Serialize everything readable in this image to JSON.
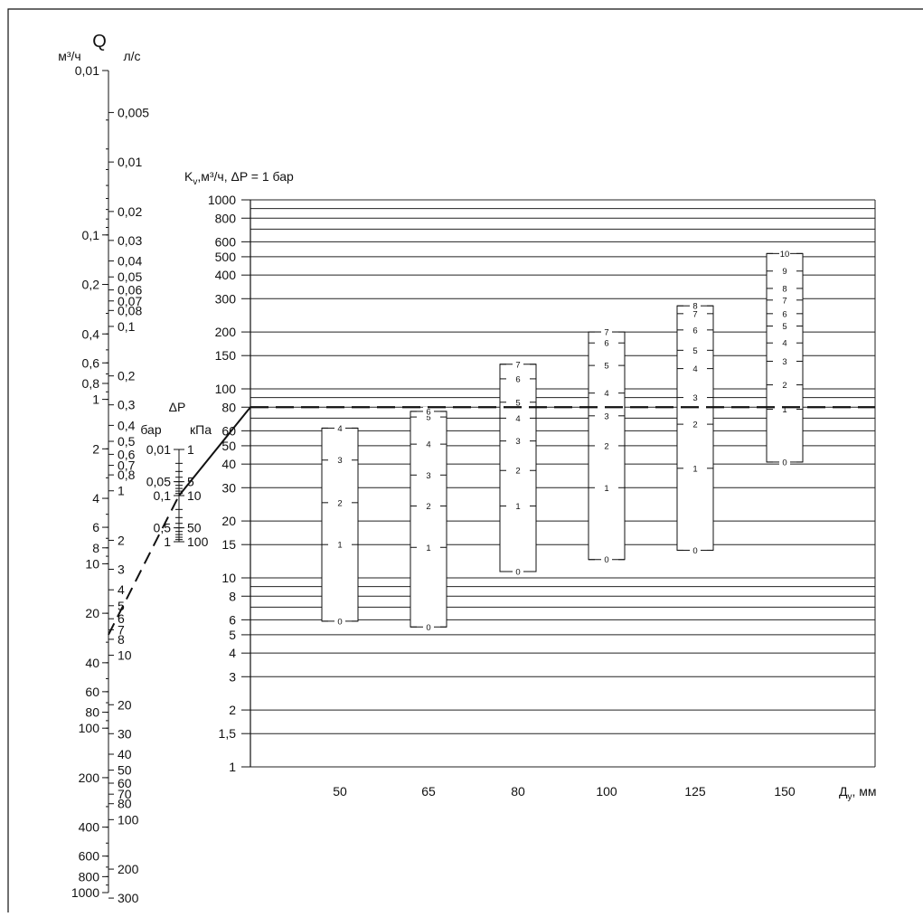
{
  "chart_data": {
    "type": "nomogram",
    "q_scale": {
      "title": "Q",
      "left_unit": "м³/ч",
      "right_unit": "л/с",
      "left_labels": [
        "0,01",
        "0,1",
        "0,2",
        "0,4",
        "0,6",
        "0,8",
        "1",
        "2",
        "4",
        "6",
        "8",
        "10",
        "20",
        "40",
        "60",
        "80",
        "100",
        "200",
        "400",
        "600",
        "800",
        "1000"
      ],
      "left_values": [
        0.01,
        0.1,
        0.2,
        0.4,
        0.6,
        0.8,
        1,
        2,
        4,
        6,
        8,
        10,
        20,
        40,
        60,
        80,
        100,
        200,
        400,
        600,
        800,
        1000
      ],
      "right_labels": [
        "0,005",
        "0,01",
        "0,02",
        "0,03",
        "0,04",
        "0,05",
        "0,06",
        "0,07",
        "0,08",
        "0,1",
        "0,2",
        "0,3",
        "0,4",
        "0,5",
        "0,6",
        "0,7",
        "0,8",
        "1",
        "2",
        "3",
        "4",
        "5",
        "6",
        "7",
        "8",
        "10",
        "20",
        "30",
        "40",
        "50",
        "60",
        "70",
        "80",
        "100",
        "200",
        "300"
      ],
      "right_values": [
        0.005,
        0.01,
        0.02,
        0.03,
        0.04,
        0.05,
        0.06,
        0.07,
        0.08,
        0.1,
        0.2,
        0.3,
        0.4,
        0.5,
        0.6,
        0.7,
        0.8,
        1,
        2,
        3,
        4,
        5,
        6,
        7,
        8,
        10,
        20,
        30,
        40,
        50,
        60,
        70,
        80,
        100,
        200,
        300
      ]
    },
    "dp_scale": {
      "title": "ΔP",
      "left_unit": "бар",
      "right_unit": "кПа",
      "left_labels": [
        "0,01",
        "0,05",
        "0,1",
        "0,5",
        "1"
      ],
      "left_values": [
        0.01,
        0.05,
        0.1,
        0.5,
        1
      ],
      "right_labels": [
        "1",
        "5",
        "10",
        "50",
        "100"
      ],
      "right_values": [
        1,
        5,
        10,
        50,
        100
      ]
    },
    "kv_axis": {
      "title": "K",
      "title_sub": "v",
      "title_rest": ",м³/ч, ΔP = 1 бар",
      "tick_labels": [
        "1",
        "1,5",
        "2",
        "3",
        "4",
        "5",
        "6",
        "8",
        "10",
        "15",
        "20",
        "30",
        "40",
        "50",
        "60",
        "80",
        "100",
        "150",
        "200",
        "300",
        "400",
        "500",
        "600",
        "800",
        "1000"
      ],
      "tick_values": [
        1,
        1.5,
        2,
        3,
        4,
        5,
        6,
        8,
        10,
        15,
        20,
        30,
        40,
        50,
        60,
        80,
        100,
        150,
        200,
        300,
        400,
        500,
        600,
        800,
        1000
      ],
      "ylim": [
        1,
        1000
      ]
    },
    "dn_axis": {
      "title": "Д",
      "title_sub": "у",
      "title_rest": ", мм",
      "categories": [
        "50",
        "65",
        "80",
        "100",
        "125",
        "150"
      ]
    },
    "valves": [
      {
        "dn": "50",
        "kv_min": 5.9,
        "kv_max": 62,
        "positions": [
          {
            "label": "0",
            "kv": 5.9
          },
          {
            "label": "1",
            "kv": 15
          },
          {
            "label": "2",
            "kv": 25
          },
          {
            "label": "3",
            "kv": 42
          },
          {
            "label": "4",
            "kv": 62
          }
        ]
      },
      {
        "dn": "65",
        "kv_min": 5.5,
        "kv_max": 76,
        "positions": [
          {
            "label": "0",
            "kv": 5.5
          },
          {
            "label": "1",
            "kv": 14.5
          },
          {
            "label": "2",
            "kv": 24
          },
          {
            "label": "3",
            "kv": 35
          },
          {
            "label": "4",
            "kv": 51
          },
          {
            "label": "5",
            "kv": 71
          },
          {
            "label": "6",
            "kv": 76
          }
        ]
      },
      {
        "dn": "80",
        "kv_min": 10.8,
        "kv_max": 135,
        "positions": [
          {
            "label": "0",
            "kv": 10.8
          },
          {
            "label": "1",
            "kv": 24
          },
          {
            "label": "2",
            "kv": 37
          },
          {
            "label": "3",
            "kv": 53
          },
          {
            "label": "4",
            "kv": 70
          },
          {
            "label": "5",
            "kv": 85
          },
          {
            "label": "6",
            "kv": 113
          },
          {
            "label": "7",
            "kv": 135
          }
        ]
      },
      {
        "dn": "100",
        "kv_min": 12.5,
        "kv_max": 200,
        "positions": [
          {
            "label": "0",
            "kv": 12.5
          },
          {
            "label": "1",
            "kv": 30
          },
          {
            "label": "2",
            "kv": 50
          },
          {
            "label": "3",
            "kv": 72
          },
          {
            "label": "4",
            "kv": 95
          },
          {
            "label": "5",
            "kv": 133
          },
          {
            "label": "6",
            "kv": 175
          },
          {
            "label": "7",
            "kv": 200
          }
        ]
      },
      {
        "dn": "125",
        "kv_min": 14,
        "kv_max": 275,
        "positions": [
          {
            "label": "0",
            "kv": 14
          },
          {
            "label": "1",
            "kv": 38
          },
          {
            "label": "2",
            "kv": 65
          },
          {
            "label": "3",
            "kv": 90
          },
          {
            "label": "4",
            "kv": 128
          },
          {
            "label": "5",
            "kv": 160
          },
          {
            "label": "6",
            "kv": 205
          },
          {
            "label": "7",
            "kv": 250
          },
          {
            "label": "8",
            "kv": 275
          }
        ]
      },
      {
        "dn": "150",
        "kv_min": 41,
        "kv_max": 520,
        "positions": [
          {
            "label": "0",
            "kv": 41
          },
          {
            "label": "1",
            "kv": 78
          },
          {
            "label": "2",
            "kv": 105
          },
          {
            "label": "3",
            "kv": 140
          },
          {
            "label": "4",
            "kv": 175
          },
          {
            "label": "5",
            "kv": 215
          },
          {
            "label": "6",
            "kv": 250
          },
          {
            "label": "7",
            "kv": 295
          },
          {
            "label": "8",
            "kv": 340
          },
          {
            "label": "9",
            "kv": 420
          },
          {
            "label": "10",
            "kv": 520
          }
        ]
      }
    ],
    "example": {
      "q_m3h": 27,
      "dp_bar": 0.1,
      "kv": 80
    },
    "grid": true
  }
}
